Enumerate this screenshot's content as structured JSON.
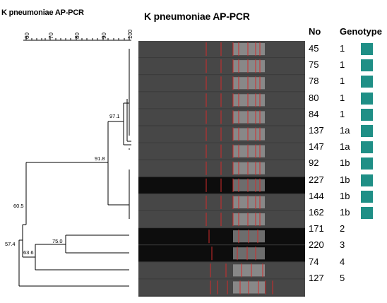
{
  "titles": {
    "dendrogram": "K pneumoniae AP-PCR",
    "gel": "K pneumoniae AP-PCR",
    "col_no": "No",
    "col_genotype": "Genotype"
  },
  "similarity_scale": {
    "ticks": [
      "60",
      "70",
      "80",
      "90",
      "100"
    ],
    "range": [
      55,
      100
    ]
  },
  "node_labels": {
    "n97": "97.1",
    "n91": "91.8",
    "n60": "60.5",
    "n57": "57.4",
    "n75": "75.0",
    "n63": "63.6"
  },
  "samples": [
    {
      "no": "45",
      "genotype": "1",
      "swatch": true
    },
    {
      "no": "75",
      "genotype": "1",
      "swatch": true
    },
    {
      "no": "78",
      "genotype": "1",
      "swatch": true
    },
    {
      "no": "80",
      "genotype": "1",
      "swatch": true
    },
    {
      "no": "84",
      "genotype": "1",
      "swatch": true
    },
    {
      "no": "137",
      "genotype": "1a",
      "swatch": true
    },
    {
      "no": "147",
      "genotype": "1a",
      "swatch": true
    },
    {
      "no": "92",
      "genotype": "1b",
      "swatch": true
    },
    {
      "no": "227",
      "genotype": "1b",
      "swatch": true
    },
    {
      "no": "144",
      "genotype": "1b",
      "swatch": true
    },
    {
      "no": "162",
      "genotype": "1b",
      "swatch": true
    },
    {
      "no": "171",
      "genotype": "2",
      "swatch": false
    },
    {
      "no": "220",
      "genotype": "3",
      "swatch": false
    },
    {
      "no": "74",
      "genotype": "4",
      "swatch": false
    },
    {
      "no": "127",
      "genotype": "5",
      "swatch": false
    }
  ],
  "colors": {
    "swatch": "#1f8f86",
    "band_marker": "#d22b2b",
    "gel_dark": "#0d0d0d"
  }
}
